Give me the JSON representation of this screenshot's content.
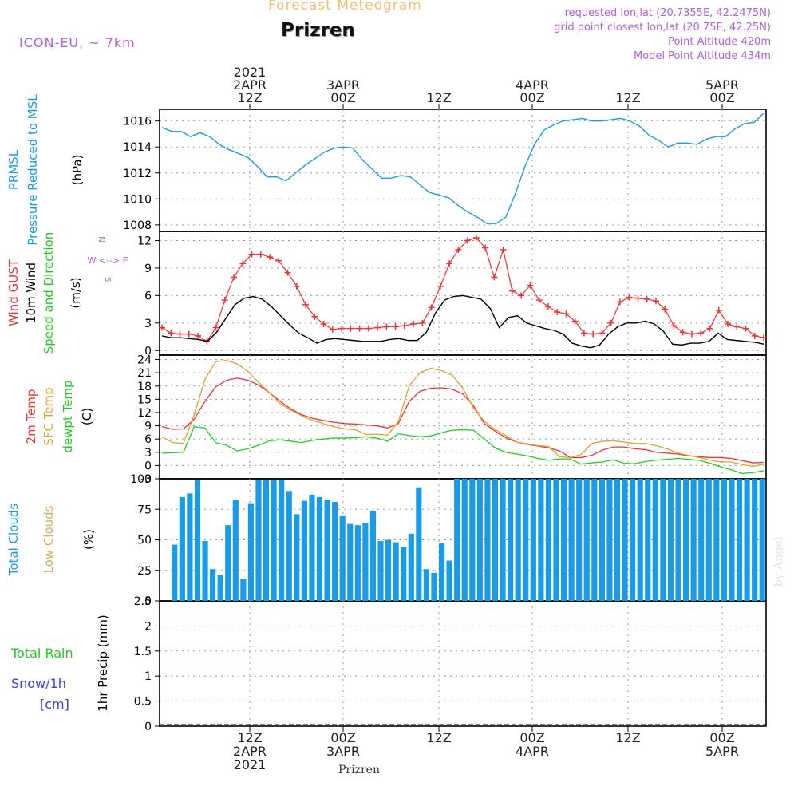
{
  "header": {
    "top_title": "Forecast Meteogram",
    "place": "Prizren",
    "model": "ICON-EU, ~ 7km",
    "requested": "requested lon,lat (20.7355E, 42.2475N)",
    "grid": "grid point closest lon,lat (20.75E, 42.25N)",
    "point_alt": "Point Altitude 420m",
    "model_alt": "Model Point Altitude 434m",
    "footer_place": "Prizren",
    "watermark": "by Angel"
  },
  "colors": {
    "pressure": "#1a9be8",
    "gust": "#ee3333",
    "wind": "#000000",
    "t2m": "#ee3333",
    "sfc": "#e0a030",
    "dewpt": "#22cc22",
    "total_cloud": "#1a9be8",
    "low_cloud": "#d8b060",
    "rain": "#22cc22",
    "snow": "#3344dd",
    "purple": "#b060dd",
    "title_orange": "#f0c070"
  },
  "time_axis": {
    "top_ticks": [
      {
        "lines": [
          "2021",
          "2APR",
          "12Z"
        ]
      },
      {
        "lines": [
          "3APR",
          "00Z"
        ]
      },
      {
        "lines": [
          "12Z"
        ]
      },
      {
        "lines": [
          "4APR",
          "00Z"
        ]
      },
      {
        "lines": [
          "12Z"
        ]
      },
      {
        "lines": [
          "5APR",
          "00Z"
        ]
      }
    ],
    "bottom_ticks": [
      {
        "lines": [
          "12Z",
          "2APR",
          "2021"
        ]
      },
      {
        "lines": [
          "00Z",
          "3APR"
        ]
      },
      {
        "lines": [
          "12Z"
        ]
      },
      {
        "lines": [
          "00Z",
          "4APR"
        ]
      },
      {
        "lines": [
          "12Z"
        ]
      },
      {
        "lines": [
          "00Z",
          "5APR"
        ]
      }
    ]
  },
  "chart_data": [
    {
      "type": "line",
      "ylabels": [
        "PRMSL",
        "Pressure Reduced to MSL",
        "(hPa)"
      ],
      "ylim": [
        1007.5,
        1016.9
      ],
      "yticks": [
        1008,
        1010,
        1012,
        1014,
        1016
      ],
      "hours": [
        0,
        1,
        2,
        3,
        4,
        5,
        6,
        7,
        8,
        9,
        10,
        11,
        12,
        13,
        14,
        15,
        16,
        17,
        18,
        19,
        20,
        21,
        22,
        23,
        24,
        25,
        26,
        27,
        28,
        29,
        30,
        31,
        32,
        33,
        34,
        35,
        36,
        37,
        38,
        39,
        40,
        41,
        42,
        43,
        44,
        45,
        46,
        47,
        48,
        49,
        50,
        51,
        52,
        53,
        54,
        55,
        56,
        57,
        58,
        59,
        60,
        61,
        62,
        63
      ],
      "series": [
        {
          "values": [
            1015.5,
            1015.2,
            1015.2,
            1014.8,
            1015.1,
            1014.8,
            1014.2,
            1013.8,
            1013.5,
            1013.2,
            1012.5,
            1011.7,
            1011.7,
            1011.4,
            1012.0,
            1012.6,
            1013.1,
            1013.6,
            1013.9,
            1014.0,
            1013.9,
            1013.0,
            1012.3,
            1011.6,
            1011.6,
            1011.8,
            1011.7,
            1011.1,
            1010.5,
            1010.3,
            1010.1,
            1009.5,
            1009.0,
            1008.6,
            1008.1,
            1008.1,
            1008.6,
            1010.4,
            1012.5,
            1014.2,
            1015.3,
            1015.7,
            1016.0,
            1016.1,
            1016.2,
            1016.0,
            1016.0,
            1016.1,
            1016.2,
            1016.0,
            1015.6,
            1014.9,
            1014.5,
            1014.0,
            1014.3,
            1014.3,
            1014.2,
            1014.6,
            1014.8,
            1014.8,
            1015.4,
            1015.8,
            1015.9,
            1016.6
          ]
        }
      ]
    },
    {
      "type": "line",
      "ylabels": [
        "Wind GUST",
        "10m Wind",
        "Speed and Direction",
        "(m/s)"
      ],
      "compass": [
        "N",
        "W <--> E",
        "S"
      ],
      "ylim": [
        -0.5,
        13
      ],
      "yticks": [
        0,
        3,
        6,
        9,
        12
      ],
      "series": [
        {
          "name": "Wind GUST",
          "values": [
            2.5,
            1.9,
            1.8,
            1.8,
            1.6,
            1.0,
            2.5,
            5.5,
            8.0,
            9.5,
            10.5,
            10.5,
            10.2,
            9.8,
            8.5,
            7.0,
            5.0,
            3.7,
            2.9,
            2.3,
            2.4,
            2.4,
            2.4,
            2.4,
            2.5,
            2.6,
            2.6,
            2.7,
            2.9,
            3.0,
            4.7,
            7.0,
            9.5,
            11.0,
            12.0,
            12.3,
            11.2,
            8.0,
            11.0,
            6.5,
            6.0,
            7.1,
            5.5,
            4.8,
            4.2,
            4.0,
            3.2,
            1.9,
            1.8,
            1.9,
            3.0,
            5.3,
            5.8,
            5.7,
            5.6,
            5.4,
            4.5,
            2.7,
            2.0,
            1.8,
            1.9,
            2.4,
            4.4,
            2.9,
            2.6,
            2.4,
            1.6,
            1.4
          ]
        },
        {
          "name": "10m Wind",
          "values": [
            1.6,
            1.4,
            1.4,
            1.3,
            1.2,
            1.0,
            2.0,
            3.5,
            5.0,
            5.7,
            5.9,
            5.6,
            4.8,
            3.8,
            2.8,
            1.9,
            1.4,
            0.8,
            1.2,
            1.3,
            1.2,
            1.1,
            1.0,
            1.0,
            1.0,
            1.2,
            1.3,
            1.1,
            1.1,
            2.0,
            4.1,
            5.5,
            5.9,
            6.0,
            5.8,
            5.6,
            4.6,
            2.5,
            3.6,
            3.8,
            3.0,
            2.7,
            2.4,
            2.2,
            1.8,
            0.8,
            0.5,
            0.3,
            0.6,
            1.8,
            2.6,
            3.0,
            3.0,
            3.2,
            2.9,
            2.1,
            0.7,
            0.6,
            0.8,
            0.8,
            1.0,
            1.9,
            1.2,
            1.1,
            1.0,
            0.9,
            0.7
          ]
        }
      ]
    },
    {
      "type": "line",
      "ylabels": [
        "2m Temp",
        "SFC Temp",
        "dewpt Temp",
        "(C)"
      ],
      "ylim": [
        -3,
        25
      ],
      "yticks": [
        -3,
        0,
        3,
        6,
        9,
        12,
        15,
        18,
        21,
        24
      ],
      "series": [
        {
          "name": "2m Temp",
          "values": [
            8.8,
            8.2,
            8.3,
            10.5,
            14.5,
            17.8,
            19.3,
            19.8,
            19.3,
            18.2,
            16.5,
            14.5,
            12.8,
            11.5,
            10.7,
            10.2,
            9.8,
            9.5,
            9.4,
            9.2,
            9.0,
            8.5,
            9.5,
            14.5,
            16.8,
            17.5,
            17.6,
            17.3,
            16.2,
            13.5,
            9.5,
            7.8,
            6.3,
            5.3,
            4.8,
            4.4,
            4.0,
            3.3,
            1.8,
            1.8,
            2.3,
            3.5,
            4.2,
            4.2,
            3.8,
            3.6,
            3.0,
            2.8,
            2.6,
            2.2,
            2.0,
            1.8,
            1.8,
            1.6,
            1.1,
            0.6,
            0.7
          ]
        },
        {
          "name": "SFC Temp",
          "values": [
            6.5,
            5.2,
            5.0,
            11.5,
            19.5,
            23.5,
            23.8,
            23.0,
            21.3,
            18.8,
            16.5,
            14.0,
            12.5,
            11.3,
            10.2,
            9.5,
            8.8,
            8.3,
            8.1,
            7.0,
            7.1,
            6.9,
            10.0,
            18.0,
            21.0,
            22.0,
            21.5,
            20.5,
            17.5,
            13.0,
            10.0,
            8.2,
            6.8,
            5.3,
            4.9,
            4.5,
            4.3,
            2.0,
            1.8,
            2.5,
            5.0,
            5.5,
            5.6,
            5.3,
            5.0,
            5.0,
            4.5,
            3.8,
            2.8,
            2.3,
            1.8,
            1.2,
            0.8,
            0.8,
            0.2,
            -0.2,
            0.3
          ]
        },
        {
          "name": "dewpt Temp",
          "values": [
            2.8,
            2.9,
            3.0,
            8.8,
            8.5,
            5.2,
            4.6,
            3.3,
            3.8,
            4.6,
            5.6,
            5.8,
            5.5,
            5.2,
            5.7,
            6.0,
            6.2,
            6.2,
            6.3,
            6.5,
            6.2,
            5.5,
            7.2,
            6.8,
            6.5,
            6.7,
            7.4,
            8.0,
            8.1,
            8.0,
            6.0,
            4.0,
            3.0,
            2.6,
            2.2,
            1.6,
            1.2,
            1.5,
            1.5,
            0.3,
            0.6,
            0.8,
            1.3,
            0.5,
            0.4,
            0.9,
            1.2,
            1.4,
            1.6,
            1.4,
            1.2,
            0.5,
            -0.3,
            -1.0,
            -1.8,
            -1.6,
            -1.2
          ]
        }
      ]
    },
    {
      "type": "bar",
      "ylabels": [
        "Total Clouds",
        "Low Clouds",
        "(%)"
      ],
      "ylim": [
        0,
        100
      ],
      "yticks": [
        0,
        25,
        50,
        75,
        100
      ],
      "series": [
        {
          "name": "Total Clouds",
          "values": [
            46,
            85,
            88,
            99,
            49,
            26,
            21,
            62,
            83,
            18,
            80,
            99,
            99,
            99,
            99,
            90,
            71,
            82,
            87,
            85,
            83,
            81,
            70,
            63,
            62,
            64,
            74,
            49,
            50,
            48,
            44,
            55,
            93,
            26,
            23,
            47,
            33,
            100,
            100,
            100,
            100,
            100,
            100,
            100,
            100,
            100,
            100,
            100,
            100,
            100,
            100,
            100,
            100,
            100,
            100,
            100,
            100,
            100,
            100,
            100,
            100,
            100,
            100,
            100,
            100,
            100,
            100,
            100,
            100,
            100,
            100,
            100,
            100,
            100,
            100,
            100,
            100,
            100
          ]
        },
        {
          "name": "Low Clouds",
          "values": [
            0,
            0,
            0,
            0,
            0,
            0,
            0,
            0,
            0,
            0,
            0,
            0,
            0,
            0,
            0,
            0,
            0,
            0,
            0,
            0,
            0,
            0,
            0,
            0,
            0,
            0,
            0,
            0,
            0,
            0,
            0,
            0,
            0,
            0,
            0,
            0,
            0,
            0,
            0,
            0,
            0,
            0,
            0,
            0,
            0,
            0,
            0,
            0,
            0,
            0,
            0,
            0,
            0,
            0,
            0,
            0,
            0,
            0,
            0,
            0,
            0,
            0,
            0,
            0,
            0,
            0,
            0,
            0,
            0,
            0,
            0,
            0,
            0,
            0,
            0,
            0,
            0,
            0
          ]
        }
      ]
    },
    {
      "type": "bar",
      "ylabels": [
        "Total Rain",
        "Snow/1h",
        "[cm]",
        "1hr Precip (mm)"
      ],
      "ylim": [
        0,
        2.5
      ],
      "yticks": [
        0,
        0.5,
        1,
        1.5,
        2,
        2.5
      ],
      "ytick_labels": [
        "0",
        "0.5",
        "1",
        "1.5",
        "2",
        "2.5"
      ],
      "series": [
        {
          "name": "Total Rain",
          "values": [
            0,
            0,
            0,
            0,
            0,
            0,
            0,
            0,
            0,
            0,
            0,
            0,
            0,
            0,
            0,
            0,
            0,
            0,
            0,
            0,
            0,
            0,
            0,
            0,
            0,
            0,
            0,
            0,
            0,
            0,
            0,
            0,
            0,
            0,
            0,
            0,
            0,
            0,
            0,
            0,
            0,
            0,
            0,
            0,
            0,
            0,
            0,
            0,
            0,
            0,
            0,
            0,
            0,
            0,
            0,
            0,
            0,
            0,
            0,
            0,
            0,
            0,
            0,
            0,
            0,
            0,
            0,
            0,
            0,
            0,
            0,
            0,
            0,
            0,
            0,
            0,
            0,
            0
          ]
        },
        {
          "name": "Snow/1h",
          "values": [
            0,
            0,
            0,
            0,
            0,
            0,
            0,
            0,
            0,
            0,
            0,
            0,
            0,
            0,
            0,
            0,
            0,
            0,
            0,
            0,
            0,
            0,
            0,
            0,
            0,
            0,
            0,
            0,
            0,
            0,
            0,
            0,
            0,
            0,
            0,
            0,
            0,
            0,
            0,
            0,
            0,
            0,
            0,
            0,
            0,
            0,
            0,
            0,
            0,
            0,
            0,
            0,
            0,
            0,
            0,
            0,
            0,
            0,
            0,
            0,
            0,
            0,
            0,
            0,
            0,
            0,
            0,
            0,
            0,
            0,
            0,
            0,
            0,
            0,
            0,
            0,
            0,
            0
          ]
        }
      ]
    }
  ]
}
